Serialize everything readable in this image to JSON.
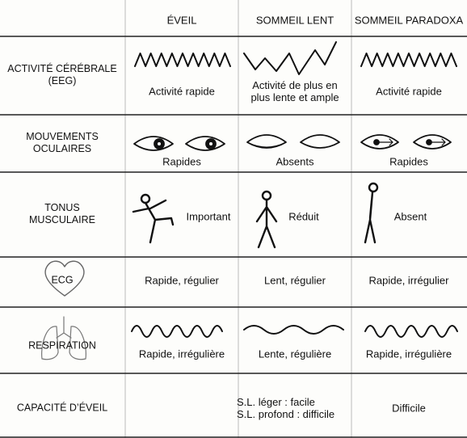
{
  "table": {
    "header": [
      "ÉVEIL",
      "SOMMEIL  LENT",
      "SOMMEIL PARADOXA"
    ],
    "rows": [
      {
        "label": [
          "ACTIVITÉ CÉRÉBRALE",
          "(EEG)"
        ],
        "cells": [
          [
            "Activité rapide"
          ],
          [
            "Activité de plus en",
            "plus lente et ample"
          ],
          [
            "Activité rapide"
          ]
        ]
      },
      {
        "label": [
          "MOUVEMENTS",
          "OCULAIRES"
        ],
        "cells": [
          [
            "Rapides"
          ],
          [
            "Absents"
          ],
          [
            "Rapides"
          ]
        ]
      },
      {
        "label": [
          "TONUS",
          "MUSCULAIRE"
        ],
        "cells": [
          [
            "Important"
          ],
          [
            "Réduit"
          ],
          [
            "Absent"
          ]
        ]
      },
      {
        "label": [
          "ECG"
        ],
        "cells": [
          [
            "Rapide, régulier"
          ],
          [
            "Lent, régulier"
          ],
          [
            "Rapide, irrégulier"
          ]
        ]
      },
      {
        "label": [
          "RESPIRATION"
        ],
        "cells": [
          [
            "Rapide, irrégulière"
          ],
          [
            "Lente, régulière"
          ],
          [
            "Rapide, irrégulière"
          ]
        ]
      },
      {
        "label": [
          "CAPACITÉ D’ÉVEIL"
        ],
        "cells": [
          null,
          [
            "S.L. léger : facile",
            "S.L. profond : difficile"
          ],
          [
            "Difficile"
          ]
        ]
      }
    ]
  }
}
